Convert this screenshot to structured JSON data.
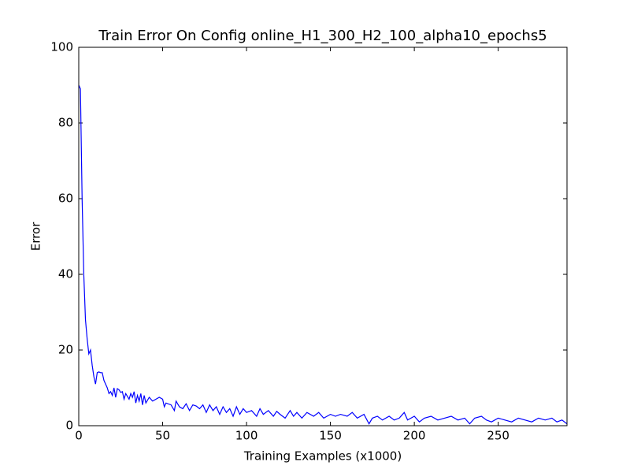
{
  "chart_data": {
    "type": "line",
    "title": "Train Error On Config online_H1_300_H2_100_alpha10_epochs5",
    "x_label": "Training Examples (x1000)",
    "y_label": "Error",
    "xlim": [
      0,
      291
    ],
    "ylim": [
      0,
      100
    ],
    "xticks": [
      0,
      50,
      100,
      150,
      200,
      250
    ],
    "yticks": [
      0,
      20,
      40,
      60,
      80,
      100
    ],
    "series": [
      {
        "name": "Train Error",
        "color": "#0000ff",
        "x": [
          0,
          1,
          2,
          3,
          4,
          5,
          6,
          7,
          8,
          9,
          10,
          11,
          12,
          13,
          14,
          15,
          16,
          17,
          18,
          19,
          20,
          21,
          22,
          23,
          24,
          25,
          26,
          27,
          28,
          30,
          31,
          32,
          33,
          34,
          35,
          36,
          37,
          38,
          39,
          40,
          42,
          44,
          46,
          48,
          50,
          51,
          52,
          55,
          57,
          58,
          60,
          62,
          64,
          66,
          68,
          70,
          72,
          74,
          76,
          78,
          80,
          82,
          84,
          86,
          88,
          90,
          92,
          94,
          96,
          98,
          100,
          103,
          106,
          108,
          110,
          113,
          116,
          118,
          120,
          123,
          126,
          128,
          130,
          133,
          136,
          140,
          143,
          146,
          150,
          153,
          156,
          160,
          163,
          166,
          170,
          173,
          175,
          178,
          181,
          185,
          188,
          191,
          194,
          196,
          200,
          203,
          206,
          210,
          214,
          218,
          222,
          226,
          230,
          233,
          236,
          240,
          243,
          246,
          250,
          254,
          258,
          262,
          266,
          270,
          274,
          278,
          282,
          285,
          288,
          291
        ],
        "values": [
          90,
          89,
          60,
          40,
          28,
          23,
          19,
          20,
          16,
          13,
          11,
          14,
          14.2,
          14,
          14,
          12,
          11,
          10,
          8.5,
          9,
          8,
          10,
          7.5,
          9.8,
          9.5,
          8.8,
          9,
          7,
          8.5,
          7,
          8.5,
          7.5,
          9,
          6,
          8,
          6.5,
          8.5,
          5.5,
          8,
          6,
          7.5,
          6.5,
          7,
          7.5,
          7,
          5,
          6,
          5.5,
          4,
          6.5,
          5,
          4.5,
          5.8,
          4,
          5.5,
          5.2,
          4.5,
          5.5,
          3.5,
          5.5,
          4,
          5,
          3,
          5,
          3.5,
          4.5,
          2.5,
          5,
          3,
          4.5,
          3.5,
          4,
          2.5,
          4.5,
          3,
          4,
          2.5,
          3.8,
          3,
          2,
          4,
          2.5,
          3.5,
          2,
          3.5,
          2.5,
          3.5,
          2,
          3,
          2.5,
          3,
          2.5,
          3.5,
          2,
          3,
          0.5,
          2,
          2.5,
          1.5,
          2.5,
          1.5,
          2,
          3.5,
          1.5,
          2.5,
          1,
          2,
          2.5,
          1.5,
          2,
          2.5,
          1.5,
          2,
          0.5,
          2,
          2.5,
          1.5,
          1,
          2,
          1.5,
          1,
          2,
          1.5,
          1,
          2,
          1.5,
          2,
          1,
          1.5,
          0.5
        ]
      }
    ]
  }
}
